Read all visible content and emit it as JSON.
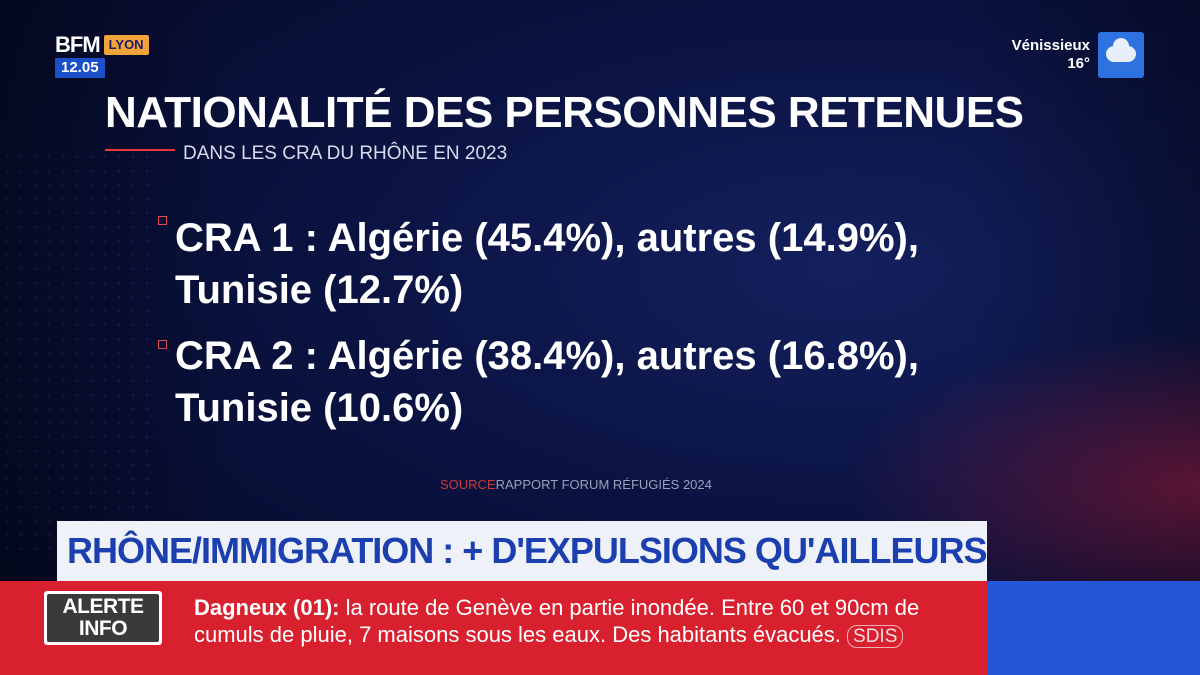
{
  "channel": {
    "brand": "BFM",
    "city": "LYON",
    "time": "12.05"
  },
  "weather": {
    "city": "Vénissieux",
    "temp": "16°",
    "icon": "cloud-icon"
  },
  "graphic": {
    "title": "NATIONALITÉ DES PERSONNES RETENUES",
    "subtitle": "DANS LES CRA DU RHÔNE EN 2023",
    "bullets": [
      {
        "line1": "CRA 1 : Algérie (45.4%), autres (14.9%),",
        "line2": "Tunisie (12.7%)"
      },
      {
        "line1": "CRA 2 : Algérie (38.4%), autres (16.8%),",
        "line2": "Tunisie (10.6%)"
      }
    ],
    "source_label": "SOURCE",
    "source_text": "RAPPORT FORUM RÉFUGIÉS 2024"
  },
  "banner": {
    "headline": "RHÔNE/IMMIGRATION : + D'EXPULSIONS QU'AILLEURS"
  },
  "ticker": {
    "badge_line1": "ALERTE",
    "badge_line2": "INFO",
    "place": "Dagneux (01):",
    "text": " la route de Genève en partie inondée. Entre 60 et 90cm de cumuls de pluie, 7 maisons sous les eaux. Des habitants évacués. ",
    "source": "SDIS"
  },
  "colors": {
    "accent_red": "#d9202e",
    "banner_blue": "#1b3fae",
    "city_badge": "#f2a43a",
    "clock_blue": "#1b4fc8"
  }
}
